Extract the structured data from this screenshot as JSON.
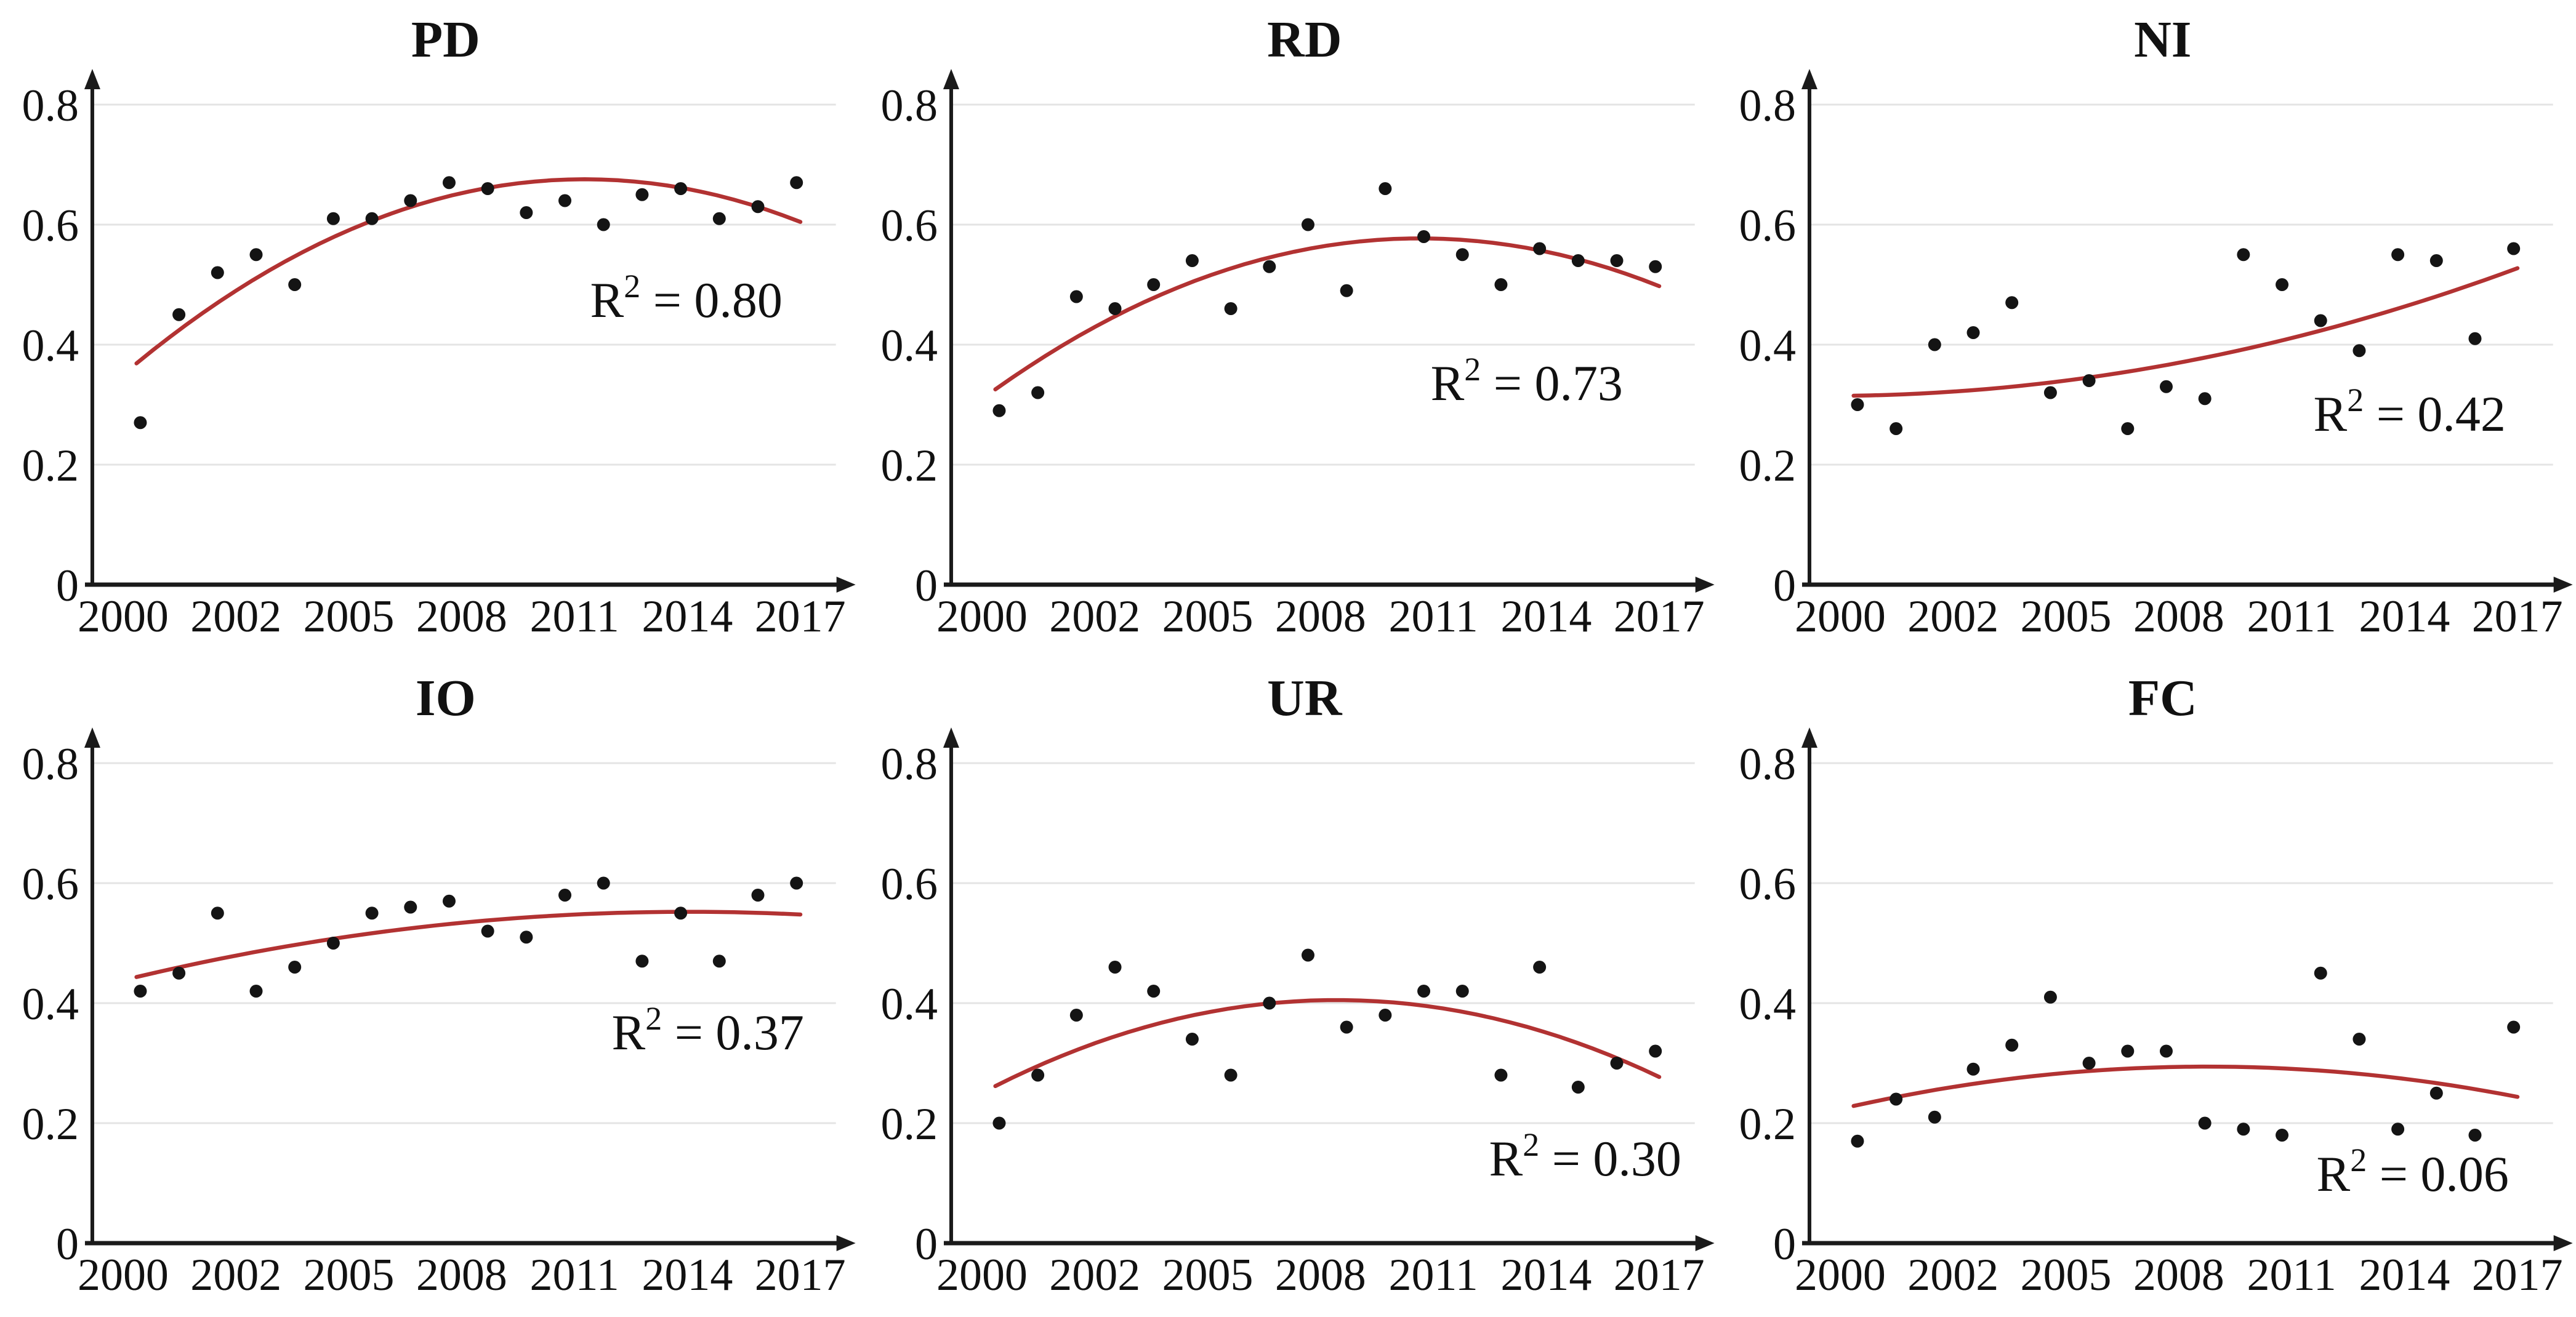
{
  "figure": {
    "background": "#ffffff",
    "rows": 2,
    "cols": 3
  },
  "style": {
    "point_color": "#141414",
    "trend_color": "#b23232",
    "grid_color": "#e4e4e4",
    "axis_color": "#1a1a1a",
    "text_color": "#111111"
  },
  "axes": {
    "ylim": [
      0,
      0.8
    ],
    "y_ticks": [
      0,
      0.2,
      0.4,
      0.6,
      0.8
    ],
    "y_tick_labels": [
      "0",
      "0.2",
      "0.4",
      "0.6",
      "0.8"
    ],
    "x_tick_labels": [
      "2000",
      "2002",
      "2005",
      "2008",
      "2011",
      "2014",
      "2017"
    ],
    "x_range_years": [
      2000,
      2017
    ],
    "grid": "horizontal-only",
    "legend": "none"
  },
  "r2_prefix": "R",
  "r2_sup": "2",
  "r2_equals": " = ",
  "chart_data": [
    {
      "type": "scatter",
      "title": "PD",
      "r_squared": "0.80",
      "x": [
        2000,
        2001,
        2002,
        2003,
        2004,
        2005,
        2006,
        2007,
        2008,
        2009,
        2010,
        2011,
        2012,
        2013,
        2014,
        2015,
        2016,
        2017
      ],
      "values": [
        0.27,
        0.45,
        0.52,
        0.55,
        0.5,
        0.61,
        0.61,
        0.64,
        0.67,
        0.66,
        0.62,
        0.64,
        0.6,
        0.65,
        0.66,
        0.61,
        0.63,
        0.67
      ],
      "trend": {
        "type": "quadratic",
        "anchor_years": [
          2000,
          2008.5,
          2017
        ],
        "anchor_values": [
          0.374,
          0.655,
          0.607
        ]
      },
      "r2_pos": [
        1115,
        515
      ]
    },
    {
      "type": "scatter",
      "title": "RD",
      "r_squared": "0.73",
      "x": [
        2000,
        2001,
        2002,
        2003,
        2004,
        2005,
        2006,
        2007,
        2008,
        2009,
        2010,
        2011,
        2012,
        2013,
        2014,
        2015,
        2016,
        2017
      ],
      "values": [
        0.29,
        0.32,
        0.48,
        0.46,
        0.5,
        0.54,
        0.46,
        0.53,
        0.6,
        0.49,
        0.66,
        0.58,
        0.55,
        0.5,
        0.56,
        0.54,
        0.54,
        0.53
      ],
      "trend": {
        "type": "quadratic",
        "anchor_years": [
          2000,
          2008.5,
          2017
        ],
        "anchor_values": [
          0.33,
          0.565,
          0.5
        ]
      },
      "r2_pos": [
        1085,
        650
      ]
    },
    {
      "type": "scatter",
      "title": "NI",
      "r_squared": "0.42",
      "x": [
        2000,
        2001,
        2002,
        2003,
        2004,
        2005,
        2006,
        2007,
        2008,
        2009,
        2010,
        2011,
        2012,
        2013,
        2014,
        2015,
        2016,
        2017
      ],
      "values": [
        0.3,
        0.26,
        0.4,
        0.42,
        0.47,
        0.32,
        0.34,
        0.26,
        0.33,
        0.31,
        0.55,
        0.5,
        0.44,
        0.39,
        0.55,
        0.54,
        0.41,
        0.56
      ],
      "trend": {
        "type": "quadratic",
        "anchor_years": [
          2000,
          2008.5,
          2017
        ],
        "anchor_values": [
          0.315,
          0.372,
          0.525
        ]
      },
      "r2_pos": [
        1125,
        700
      ]
    },
    {
      "type": "scatter",
      "title": "IO",
      "r_squared": "0.37",
      "x": [
        2000,
        2001,
        2002,
        2003,
        2004,
        2005,
        2006,
        2007,
        2008,
        2009,
        2010,
        2011,
        2012,
        2013,
        2014,
        2015,
        2016,
        2017
      ],
      "values": [
        0.42,
        0.45,
        0.55,
        0.42,
        0.46,
        0.5,
        0.55,
        0.56,
        0.57,
        0.52,
        0.51,
        0.58,
        0.6,
        0.47,
        0.55,
        0.47,
        0.58,
        0.6
      ],
      "trend": {
        "type": "quadratic",
        "anchor_years": [
          2000,
          2008.5,
          2017
        ],
        "anchor_values": [
          0.445,
          0.535,
          0.548
        ]
      },
      "r2_pos": [
        1150,
        635
      ]
    },
    {
      "type": "scatter",
      "title": "UR",
      "r_squared": "0.30",
      "x": [
        2000,
        2001,
        2002,
        2003,
        2004,
        2005,
        2006,
        2007,
        2008,
        2009,
        2010,
        2011,
        2012,
        2013,
        2014,
        2015,
        2016,
        2017
      ],
      "values": [
        0.2,
        0.28,
        0.38,
        0.46,
        0.42,
        0.34,
        0.28,
        0.4,
        0.48,
        0.36,
        0.38,
        0.42,
        0.42,
        0.28,
        0.46,
        0.26,
        0.3,
        0.32
      ],
      "trend": {
        "type": "quadratic",
        "anchor_years": [
          2000,
          2008.5,
          2017
        ],
        "anchor_values": [
          0.265,
          0.405,
          0.28
        ]
      },
      "r2_pos": [
        1180,
        840
      ]
    },
    {
      "type": "scatter",
      "title": "FC",
      "r_squared": "0.06",
      "x": [
        2000,
        2001,
        2002,
        2003,
        2004,
        2005,
        2006,
        2007,
        2008,
        2009,
        2010,
        2011,
        2012,
        2013,
        2014,
        2015,
        2016,
        2017
      ],
      "values": [
        0.17,
        0.24,
        0.21,
        0.29,
        0.33,
        0.41,
        0.3,
        0.32,
        0.32,
        0.2,
        0.19,
        0.18,
        0.45,
        0.34,
        0.19,
        0.25,
        0.18,
        0.36
      ],
      "trend": {
        "type": "quadratic",
        "anchor_years": [
          2000,
          2008.5,
          2017
        ],
        "anchor_values": [
          0.23,
          0.294,
          0.245
        ]
      },
      "r2_pos": [
        1130,
        865
      ]
    }
  ]
}
